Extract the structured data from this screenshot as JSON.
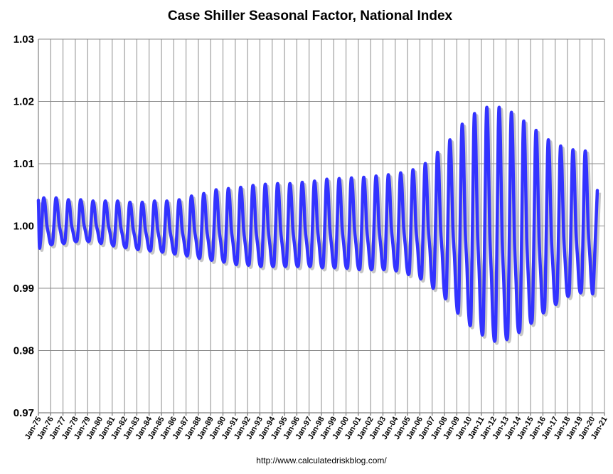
{
  "chart_data": {
    "type": "line",
    "title": "Case Shiller Seasonal Factor, National Index",
    "source": "http://www.calculatedriskblog.com/",
    "xlabel": "",
    "ylabel": "",
    "ylim": [
      0.97,
      1.03
    ],
    "y_ticks": [
      "0.97",
      "0.98",
      "0.99",
      "1.00",
      "1.01",
      "1.02",
      "1.03"
    ],
    "y_tick_values": [
      0.97,
      0.98,
      0.99,
      1.0,
      1.01,
      1.02,
      1.03
    ],
    "x_ticks": [
      "Jan-75",
      "Jan-76",
      "Jan-77",
      "Jan-78",
      "Jan-79",
      "Jan-80",
      "Jan-81",
      "Jan-82",
      "Jan-83",
      "Jan-84",
      "Jan-85",
      "Jan-86",
      "Jan-87",
      "Jan-88",
      "Jan-89",
      "Jan-90",
      "Jan-91",
      "Jan-92",
      "Jan-93",
      "Jan-94",
      "Jan-95",
      "Jan-96",
      "Jan-97",
      "Jan-98",
      "Jan-99",
      "Jan-00",
      "Jan-01",
      "Jan-02",
      "Jan-03",
      "Jan-04",
      "Jan-05",
      "Jan-06",
      "Jan-07",
      "Jan-08",
      "Jan-09",
      "Jan-10",
      "Jan-11",
      "Jan-12",
      "Jan-13",
      "Jan-14",
      "Jan-15",
      "Jan-16",
      "Jan-17",
      "Jan-18",
      "Jan-19",
      "Jan-20",
      "Jan-21"
    ],
    "x_range_years": [
      1975,
      2021
    ],
    "grid": true,
    "line_color": "#3333ff",
    "series": [
      {
        "name": "Seasonal Factor",
        "description": "Annual seasonal cycle; peak ~June-July, trough ~Jan-Feb",
        "years": [
          1975,
          1976,
          1977,
          1978,
          1979,
          1980,
          1981,
          1982,
          1983,
          1984,
          1985,
          1986,
          1987,
          1988,
          1989,
          1990,
          1991,
          1992,
          1993,
          1994,
          1995,
          1996,
          1997,
          1998,
          1999,
          2000,
          2001,
          2002,
          2003,
          2004,
          2005,
          2006,
          2007,
          2008,
          2009,
          2010,
          2011,
          2012,
          2013,
          2014,
          2015,
          2016,
          2017,
          2018,
          2019
        ],
        "peaks": [
          1.0045,
          1.0045,
          1.0042,
          1.0042,
          1.004,
          1.004,
          1.004,
          1.0038,
          1.0038,
          1.004,
          1.004,
          1.0042,
          1.0048,
          1.0052,
          1.0058,
          1.006,
          1.0062,
          1.0065,
          1.0067,
          1.0068,
          1.0068,
          1.007,
          1.0072,
          1.0075,
          1.0076,
          1.0077,
          1.0078,
          1.008,
          1.0082,
          1.0085,
          1.009,
          1.01,
          1.0118,
          1.0138,
          1.0163,
          1.018,
          1.019,
          1.019,
          1.0182,
          1.0168,
          1.0153,
          1.0138,
          1.0128,
          1.0122,
          1.012
        ],
        "troughs": [
          0.9968,
          0.997,
          0.9972,
          0.9975,
          0.9975,
          0.9972,
          0.9968,
          0.9965,
          0.9962,
          0.996,
          0.9958,
          0.9955,
          0.9952,
          0.9948,
          0.9945,
          0.9942,
          0.9938,
          0.9937,
          0.9935,
          0.9935,
          0.9935,
          0.9935,
          0.9935,
          0.9933,
          0.9933,
          0.9932,
          0.993,
          0.993,
          0.993,
          0.9928,
          0.9922,
          0.9915,
          0.99,
          0.9883,
          0.986,
          0.984,
          0.9825,
          0.9815,
          0.9818,
          0.983,
          0.9845,
          0.9862,
          0.9875,
          0.9888,
          0.9893
        ],
        "end": {
          "year": 2020,
          "month": "Jun",
          "value": 1.0057
        }
      }
    ]
  }
}
